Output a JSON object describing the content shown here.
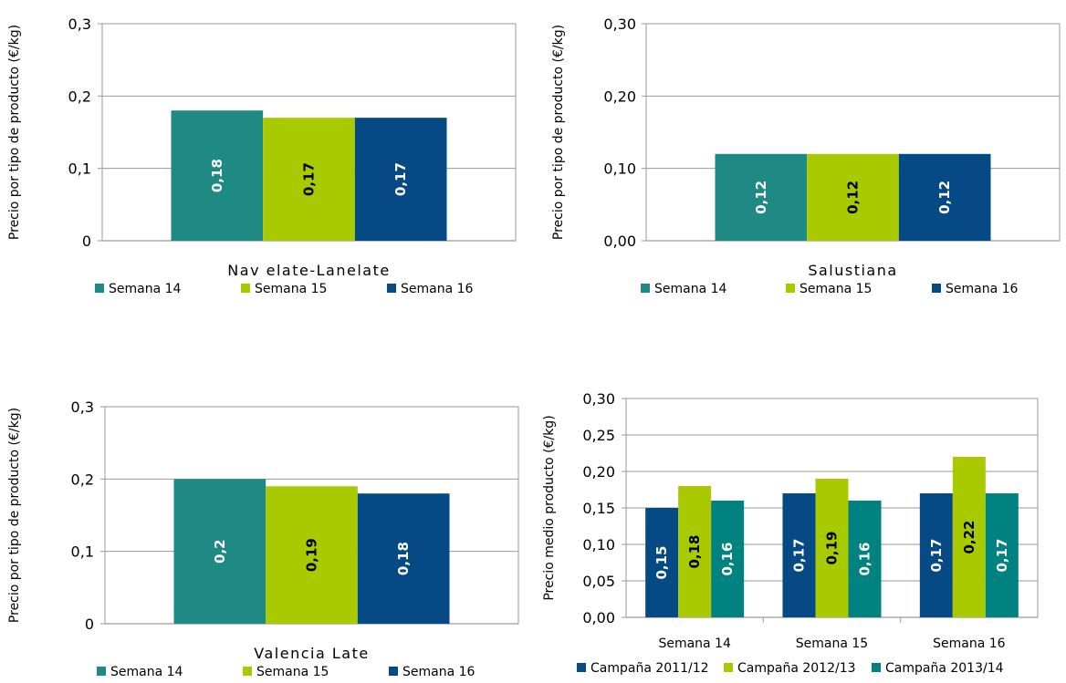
{
  "chart_data": [
    {
      "type": "bar",
      "categories": [
        "Nav elate-Lanelate"
      ],
      "ylabel": "Precio por tipo de producto (€/kg)",
      "ylim": [
        0,
        0.3
      ],
      "yticks": [
        "0",
        "0,1",
        "0,2",
        "0,3"
      ],
      "grid": true,
      "legend_position": "bottom",
      "series": [
        {
          "name": "Semana 14",
          "values": [
            0.18
          ],
          "labels": [
            "0,18"
          ],
          "color": "#1f8a84",
          "label_color": "#ffffff"
        },
        {
          "name": "Semana 15",
          "values": [
            0.17
          ],
          "labels": [
            "0,17"
          ],
          "color": "#a9ca00",
          "label_color": "#000000"
        },
        {
          "name": "Semana 16",
          "values": [
            0.17
          ],
          "labels": [
            "0,17"
          ],
          "color": "#064a85",
          "label_color": "#ffffff"
        }
      ]
    },
    {
      "type": "bar",
      "categories": [
        "Salustiana"
      ],
      "ylabel": "Precio por tipo de producto (€/kg)",
      "ylim": [
        0,
        0.3
      ],
      "yticks": [
        "0,00",
        "0,10",
        "0,20",
        "0,30"
      ],
      "grid": true,
      "legend_position": "bottom",
      "series": [
        {
          "name": "Semana 14",
          "values": [
            0.12
          ],
          "labels": [
            "0,12"
          ],
          "color": "#1f8a84",
          "label_color": "#ffffff"
        },
        {
          "name": "Semana 15",
          "values": [
            0.12
          ],
          "labels": [
            "0,12"
          ],
          "color": "#a9ca00",
          "label_color": "#000000"
        },
        {
          "name": "Semana 16",
          "values": [
            0.12
          ],
          "labels": [
            "0,12"
          ],
          "color": "#064a85",
          "label_color": "#ffffff"
        }
      ]
    },
    {
      "type": "bar",
      "categories": [
        "Valencia Late"
      ],
      "ylabel": "Precio por tipo de producto (€/kg)",
      "ylim": [
        0,
        0.3
      ],
      "yticks": [
        "0",
        "0,1",
        "0,2",
        "0,3"
      ],
      "grid": true,
      "legend_position": "bottom",
      "series": [
        {
          "name": "Semana 14",
          "values": [
            0.2
          ],
          "labels": [
            "0,2"
          ],
          "color": "#1f8a84",
          "label_color": "#ffffff"
        },
        {
          "name": "Semana 15",
          "values": [
            0.19
          ],
          "labels": [
            "0,19"
          ],
          "color": "#a9ca00",
          "label_color": "#000000"
        },
        {
          "name": "Semana 16",
          "values": [
            0.18
          ],
          "labels": [
            "0,18"
          ],
          "color": "#064a85",
          "label_color": "#ffffff"
        }
      ]
    },
    {
      "type": "bar",
      "categories": [
        "Semana 14",
        "Semana 15",
        "Semana 16"
      ],
      "ylabel": "Precio medio producto (€/kg)",
      "ylim": [
        0,
        0.3
      ],
      "yticks": [
        "0,00",
        "0,05",
        "0,10",
        "0,15",
        "0,20",
        "0,25",
        "0,30"
      ],
      "grid": true,
      "legend_position": "bottom",
      "series": [
        {
          "name": "Campaña 2011/12",
          "values": [
            0.15,
            0.17,
            0.17
          ],
          "labels": [
            "0,15",
            "0,17",
            "0,17"
          ],
          "color": "#064a85",
          "label_color": "#ffffff"
        },
        {
          "name": "Campaña 2012/13",
          "values": [
            0.18,
            0.19,
            0.22
          ],
          "labels": [
            "0,18",
            "0,19",
            "0,22"
          ],
          "color": "#a9ca00",
          "label_color": "#000000"
        },
        {
          "name": "Campaña 2013/14",
          "values": [
            0.16,
            0.16,
            0.17
          ],
          "labels": [
            "0,16",
            "0,16",
            "0,17"
          ],
          "color": "#008380",
          "label_color": "#ffffff"
        }
      ]
    }
  ]
}
